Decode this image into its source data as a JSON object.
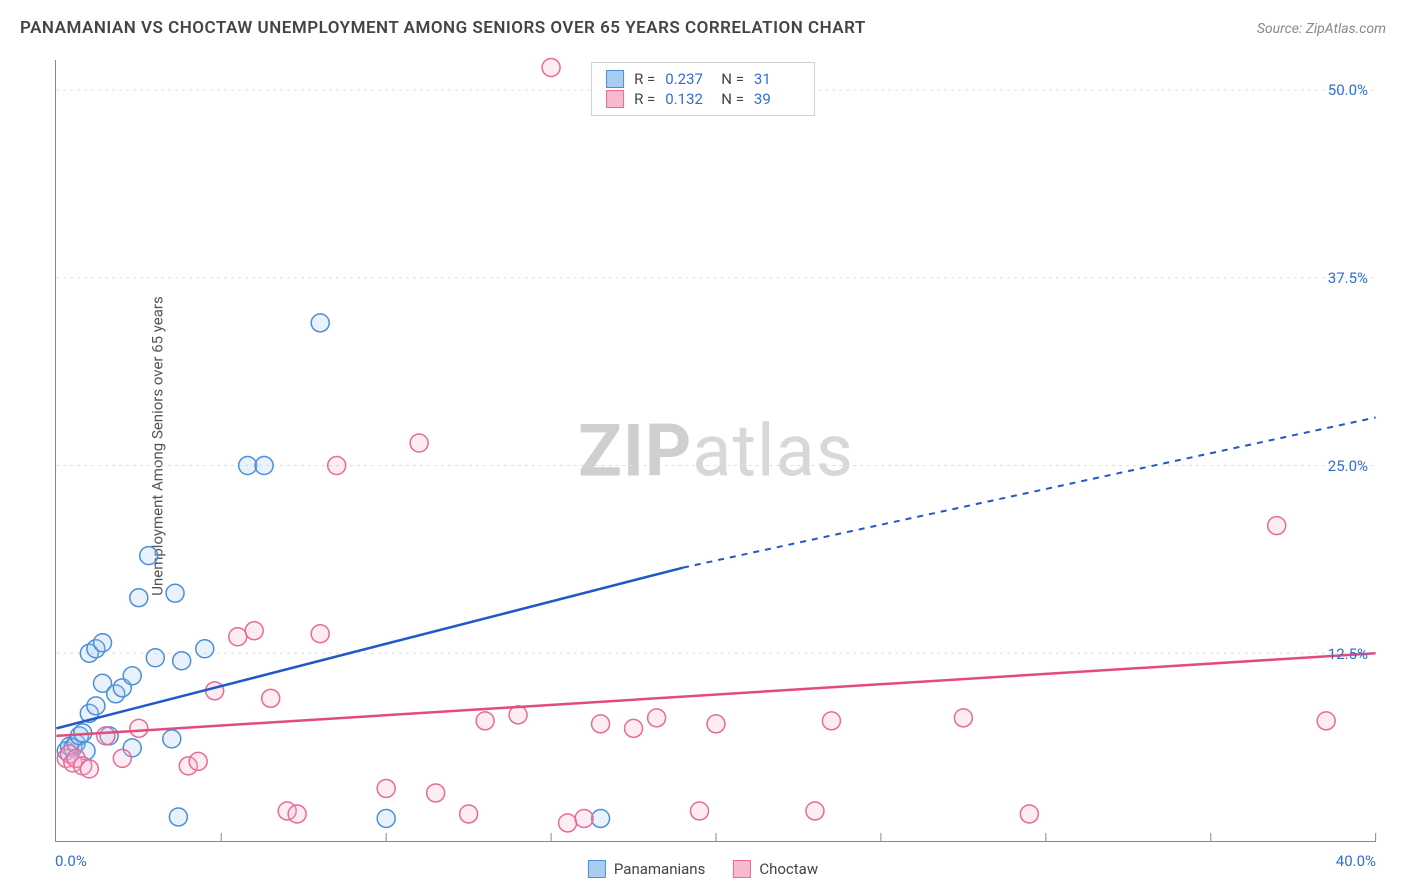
{
  "header": {
    "title": "PANAMANIAN VS CHOCTAW UNEMPLOYMENT AMONG SENIORS OVER 65 YEARS CORRELATION CHART",
    "source": "Source: ZipAtlas.com"
  },
  "chart": {
    "type": "scatter",
    "watermark_a": "ZIP",
    "watermark_b": "atlas",
    "y_axis_label": "Unemployment Among Seniors over 65 years",
    "xlim": [
      0,
      40
    ],
    "ylim": [
      0,
      52
    ],
    "x_origin_label": "0.0%",
    "x_max_label": "40.0%",
    "y_ticks": [
      {
        "v": 12.5,
        "label": "12.5%"
      },
      {
        "v": 25.0,
        "label": "25.0%"
      },
      {
        "v": 37.5,
        "label": "37.5%"
      },
      {
        "v": 50.0,
        "label": "50.0%"
      }
    ],
    "x_tick_positions": [
      5,
      10,
      15,
      20,
      25,
      30,
      35,
      40
    ],
    "background_color": "#ffffff",
    "grid_color": "#dddddd",
    "marker_radius": 9,
    "marker_stroke_width": 1.5,
    "marker_fill_opacity": 0.25,
    "series": [
      {
        "name": "Panamanians",
        "label": "Panamanians",
        "color_stroke": "#4a8fd8",
        "color_fill": "#a9cdef",
        "R": "0.237",
        "N": "31",
        "trend": {
          "color": "#2158c7",
          "x0": 0,
          "y0": 7.5,
          "x1": 19,
          "y1": 18.2,
          "x2": 40,
          "y2": 28.2
        },
        "points": [
          [
            0.3,
            6.0
          ],
          [
            0.4,
            6.3
          ],
          [
            0.5,
            6.2
          ],
          [
            0.6,
            6.5
          ],
          [
            0.7,
            7.0
          ],
          [
            0.8,
            7.2
          ],
          [
            0.9,
            6.0
          ],
          [
            1.0,
            8.5
          ],
          [
            1.0,
            12.5
          ],
          [
            1.2,
            9.0
          ],
          [
            1.2,
            12.8
          ],
          [
            1.4,
            10.5
          ],
          [
            1.4,
            13.2
          ],
          [
            1.6,
            7.0
          ],
          [
            1.8,
            9.8
          ],
          [
            2.0,
            10.2
          ],
          [
            2.3,
            11.0
          ],
          [
            2.3,
            6.2
          ],
          [
            2.5,
            16.2
          ],
          [
            2.8,
            19.0
          ],
          [
            3.0,
            12.2
          ],
          [
            3.5,
            6.8
          ],
          [
            3.6,
            16.5
          ],
          [
            3.7,
            1.6
          ],
          [
            3.8,
            12.0
          ],
          [
            4.5,
            12.8
          ],
          [
            5.8,
            25.0
          ],
          [
            6.3,
            25.0
          ],
          [
            8.0,
            34.5
          ],
          [
            10.0,
            1.5
          ],
          [
            16.5,
            1.5
          ]
        ]
      },
      {
        "name": "Choctaw",
        "label": "Choctaw",
        "color_stroke": "#e76a9a",
        "color_fill": "#f6b9cf",
        "R": "0.132",
        "N": "39",
        "trend": {
          "color": "#e14b7d",
          "x0": 0,
          "y0": 7.0,
          "x1": 40,
          "y1": 12.5,
          "x2": 40,
          "y2": 12.5
        },
        "points": [
          [
            0.3,
            5.5
          ],
          [
            0.4,
            5.8
          ],
          [
            0.5,
            5.2
          ],
          [
            0.6,
            5.5
          ],
          [
            0.8,
            5.0
          ],
          [
            1.0,
            4.8
          ],
          [
            1.5,
            7.0
          ],
          [
            2.0,
            5.5
          ],
          [
            2.5,
            7.5
          ],
          [
            4.0,
            5.0
          ],
          [
            4.3,
            5.3
          ],
          [
            4.8,
            10.0
          ],
          [
            5.5,
            13.6
          ],
          [
            6.0,
            14.0
          ],
          [
            6.5,
            9.5
          ],
          [
            7.0,
            2.0
          ],
          [
            7.3,
            1.8
          ],
          [
            8.0,
            13.8
          ],
          [
            8.5,
            25.0
          ],
          [
            10.0,
            3.5
          ],
          [
            11.0,
            26.5
          ],
          [
            11.5,
            3.2
          ],
          [
            12.5,
            1.8
          ],
          [
            13.0,
            8.0
          ],
          [
            14.0,
            8.4
          ],
          [
            15.0,
            51.5
          ],
          [
            15.5,
            1.2
          ],
          [
            16.0,
            1.5
          ],
          [
            16.5,
            7.8
          ],
          [
            17.5,
            7.5
          ],
          [
            18.2,
            8.2
          ],
          [
            19.5,
            2.0
          ],
          [
            20.0,
            7.8
          ],
          [
            23.0,
            2.0
          ],
          [
            23.5,
            8.0
          ],
          [
            27.5,
            8.2
          ],
          [
            29.5,
            1.8
          ],
          [
            37.0,
            21.0
          ],
          [
            38.5,
            8.0
          ]
        ]
      }
    ]
  }
}
